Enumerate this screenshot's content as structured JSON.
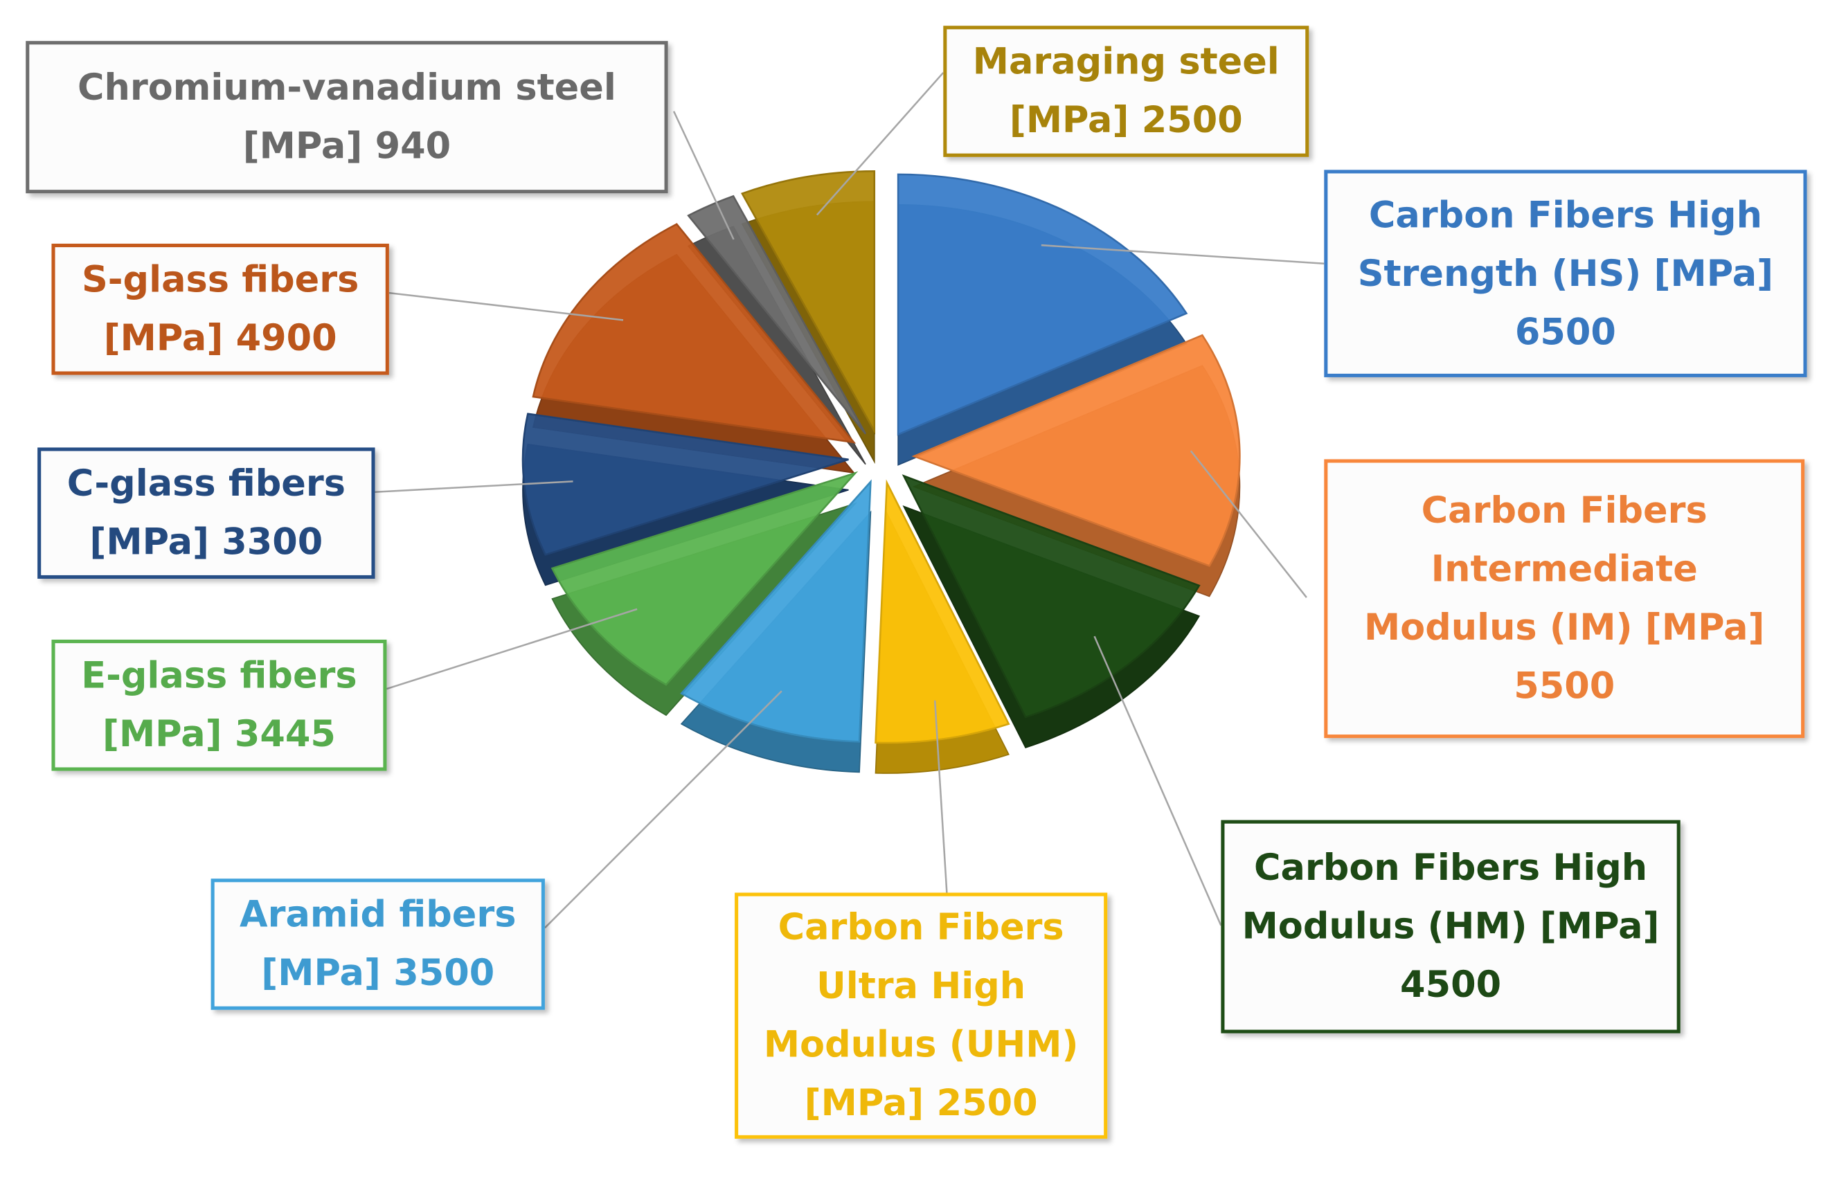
{
  "chart_data": {
    "type": "pie",
    "categories": [
      "Carbon Fibers High Strength (HS)",
      "Carbon Fibers Intermediate Modulus (IM)",
      "Carbon Fibers High Modulus (HM)",
      "Carbon Fibers Ultra High Modulus (UHM)",
      "Aramid fibers",
      "E-glass fibers",
      "C-glass fibers",
      "S-glass fibers",
      "Chromium-vanadium steel",
      "Maraging steel"
    ],
    "values": [
      6500,
      5500,
      4500,
      2500,
      3500,
      3445,
      3300,
      4900,
      940,
      2500
    ],
    "value_unit": "[MPa]",
    "colors": [
      "#3a7dc9",
      "#f8873c",
      "#1e4d16",
      "#fcc20a",
      "#41a3dc",
      "#5bb450",
      "#264e86",
      "#c55a1c",
      "#6e6e6e",
      "#b08a0c"
    ]
  }
}
